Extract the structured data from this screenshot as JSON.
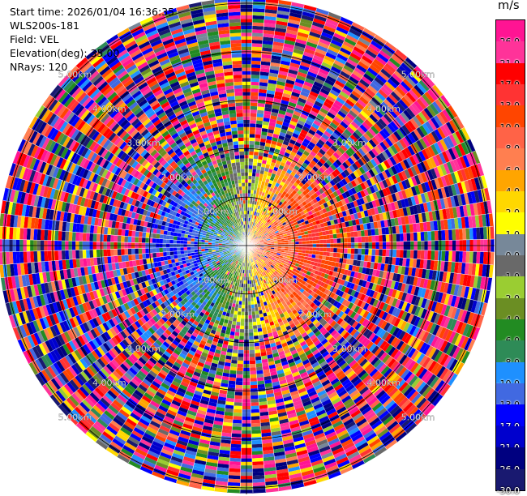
{
  "info": {
    "start_time": "Start time: 2026/01/04 16:36:35",
    "instrument": "WLS200s-181",
    "field": "Field: VEL",
    "elevation": "Elevation(deg): 35.00",
    "nrays": "NRays: 120"
  },
  "colorbar": {
    "unit": "m/s",
    "levels": [
      {
        "label": "26.0",
        "color": "#ff1493"
      },
      {
        "label": "21.0",
        "color": "#ff3399"
      },
      {
        "label": "17.0",
        "color": "#ff0000"
      },
      {
        "label": "13.0",
        "color": "#ff3333"
      },
      {
        "label": "10.0",
        "color": "#ff4500"
      },
      {
        "label": "8.0",
        "color": "#ff6347"
      },
      {
        "label": "6.0",
        "color": "#ff7f50"
      },
      {
        "label": "4.0",
        "color": "#ffa500"
      },
      {
        "label": "2.0",
        "color": "#ffd700"
      },
      {
        "label": "1.0",
        "color": "#ffff00"
      },
      {
        "label": "0.0",
        "color": "#778899"
      },
      {
        "label": "-1.0",
        "color": "#696969"
      },
      {
        "label": "-2.0",
        "color": "#9acd32"
      },
      {
        "label": "-4.0",
        "color": "#6b8e23"
      },
      {
        "label": "-6.0",
        "color": "#228b22"
      },
      {
        "label": "-8.0",
        "color": "#2e8b57"
      },
      {
        "label": "-10.0",
        "color": "#1e90ff"
      },
      {
        "label": "-13.0",
        "color": "#4169e1"
      },
      {
        "label": "-17.0",
        "color": "#0000ff"
      },
      {
        "label": "-21.0",
        "color": "#0000cd"
      },
      {
        "label": "-26.0",
        "color": "#000080"
      },
      {
        "label": "-30.0",
        "color": "#191970"
      }
    ]
  },
  "chart_data": {
    "type": "heatmap",
    "projection": "polar PPI",
    "field": "VEL",
    "units": "m/s",
    "elevation_deg": 35.0,
    "nrays": 120,
    "range_rings": [
      "1.00km",
      "2.00km",
      "3.00km",
      "4.00km",
      "5.00km"
    ],
    "range_ring_values_km": [
      1,
      2,
      3,
      4,
      5
    ],
    "max_range_km": 5.1,
    "vmin": -30.0,
    "vmax": 30.0,
    "pattern": {
      "east_sector": "positive velocities 6 to 17 m/s (orange/red)",
      "west_sector": "negative velocities -8 to -17 m/s (blue)",
      "center_north_south": "near-zero velocities -2 to 2 m/s (yellow/olive)",
      "beyond_2km": "noisy random values across full range"
    }
  }
}
